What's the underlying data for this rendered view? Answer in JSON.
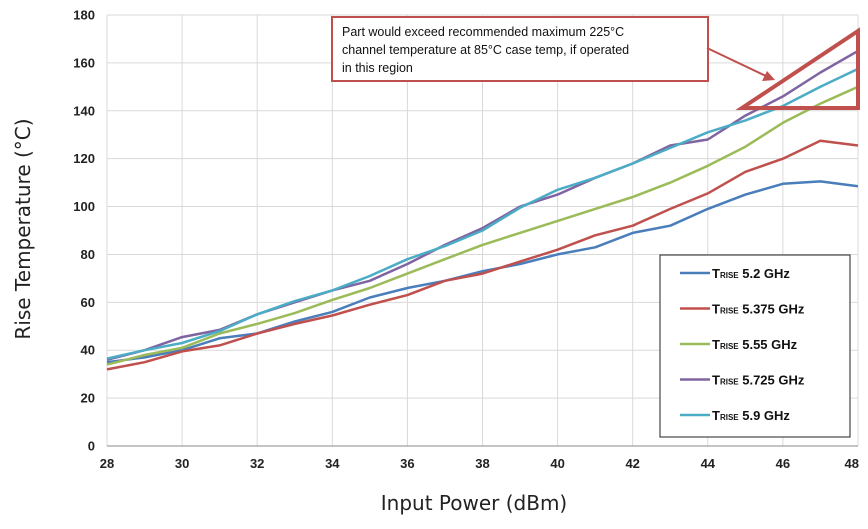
{
  "chart_data": {
    "type": "line",
    "title": "",
    "xlabel": "Input Power (dBm)",
    "ylabel": "Rise Temperature (°C)",
    "xlim": [
      28,
      48
    ],
    "ylim": [
      0,
      180
    ],
    "x_ticks": [
      28,
      30,
      32,
      34,
      36,
      38,
      40,
      42,
      44,
      46,
      48
    ],
    "y_ticks": [
      0,
      20,
      40,
      60,
      80,
      100,
      120,
      140,
      160,
      180
    ],
    "grid": true,
    "legend_position": "bottom-right",
    "x": [
      28,
      29,
      30,
      31,
      32,
      33,
      34,
      35,
      36,
      37,
      38,
      39,
      40,
      41,
      42,
      43,
      44,
      45,
      46,
      47,
      48
    ],
    "series": [
      {
        "name_main": "T",
        "name_sub": "RISE",
        "name_rest": " 5.2 GHz",
        "color": "#4a7ebb",
        "values": [
          35,
          37,
          40,
          45,
          47,
          52,
          56,
          62,
          66,
          69,
          73,
          76,
          80,
          83,
          89,
          92,
          99,
          105,
          109.5,
          110.5,
          108.5
        ]
      },
      {
        "name_main": "T",
        "name_sub": "RISE",
        "name_rest": " 5.375 GHz",
        "color": "#c0504d",
        "values": [
          32,
          35,
          39.5,
          42,
          47,
          51,
          54.5,
          59,
          63,
          69,
          72,
          77,
          82,
          88,
          92,
          99,
          105.5,
          114.5,
          120,
          127.5,
          125.5
        ]
      },
      {
        "name_main": "T",
        "name_sub": "RISE",
        "name_rest": " 5.55 GHz",
        "color": "#9bbb59",
        "values": [
          34,
          38,
          41,
          47,
          51,
          55.5,
          61,
          66,
          72,
          78,
          84,
          89,
          94,
          99,
          104,
          110,
          117,
          125,
          135,
          143,
          150
        ]
      },
      {
        "name_main": "T",
        "name_sub": "RISE",
        "name_rest": " 5.725 GHz",
        "color": "#8064a2",
        "values": [
          36,
          40,
          45.5,
          48.5,
          55,
          60,
          65,
          69,
          76,
          84,
          91,
          100,
          105,
          112,
          118,
          125.5,
          128,
          138,
          146,
          156,
          165
        ]
      },
      {
        "name_main": "T",
        "name_sub": "RISE",
        "name_rest": " 5.9 GHz",
        "color": "#4bacc6",
        "values": [
          36.5,
          40,
          43,
          48,
          55,
          60.5,
          65,
          71,
          78,
          83.5,
          90,
          99.5,
          107,
          112,
          118,
          124.5,
          131,
          136,
          142,
          150,
          157.5
        ]
      }
    ],
    "annotation": {
      "text_lines": [
        "Part would exceed recommended maximum 225°C",
        "channel temperature at 85°C case temp, if operated",
        "in this region"
      ],
      "color": "#c0504d"
    }
  }
}
